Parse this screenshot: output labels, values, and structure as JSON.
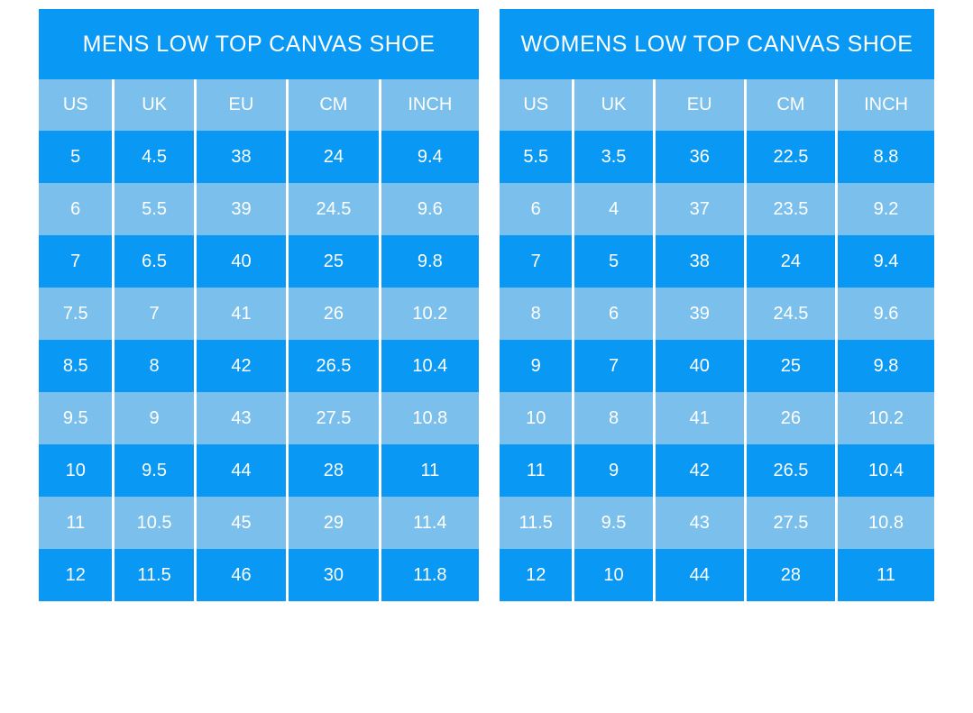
{
  "colors": {
    "primary_blue": "#0998f4",
    "light_blue": "#7bc0ec",
    "separator_white": "#ffffff",
    "text_white": "#ffffff"
  },
  "chart_data": [
    {
      "type": "table",
      "title": "MENS LOW TOP CANVAS SHOE",
      "columns": [
        "US",
        "UK",
        "EU",
        "CM",
        "INCH"
      ],
      "rows": [
        [
          "5",
          "4.5",
          "38",
          "24",
          "9.4"
        ],
        [
          "6",
          "5.5",
          "39",
          "24.5",
          "9.6"
        ],
        [
          "7",
          "6.5",
          "40",
          "25",
          "9.8"
        ],
        [
          "7.5",
          "7",
          "41",
          "26",
          "10.2"
        ],
        [
          "8.5",
          "8",
          "42",
          "26.5",
          "10.4"
        ],
        [
          "9.5",
          "9",
          "43",
          "27.5",
          "10.8"
        ],
        [
          "10",
          "9.5",
          "44",
          "28",
          "11"
        ],
        [
          "11",
          "10.5",
          "45",
          "29",
          "11.4"
        ],
        [
          "12",
          "11.5",
          "46",
          "30",
          "11.8"
        ]
      ]
    },
    {
      "type": "table",
      "title": "WOMENS LOW TOP CANVAS SHOE",
      "columns": [
        "US",
        "UK",
        "EU",
        "CM",
        "INCH"
      ],
      "rows": [
        [
          "5.5",
          "3.5",
          "36",
          "22.5",
          "8.8"
        ],
        [
          "6",
          "4",
          "37",
          "23.5",
          "9.2"
        ],
        [
          "7",
          "5",
          "38",
          "24",
          "9.4"
        ],
        [
          "8",
          "6",
          "39",
          "24.5",
          "9.6"
        ],
        [
          "9",
          "7",
          "40",
          "25",
          "9.8"
        ],
        [
          "10",
          "8",
          "41",
          "26",
          "10.2"
        ],
        [
          "11",
          "9",
          "42",
          "26.5",
          "10.4"
        ],
        [
          "11.5",
          "9.5",
          "43",
          "27.5",
          "10.8"
        ],
        [
          "12",
          "10",
          "44",
          "28",
          "11"
        ]
      ]
    }
  ]
}
